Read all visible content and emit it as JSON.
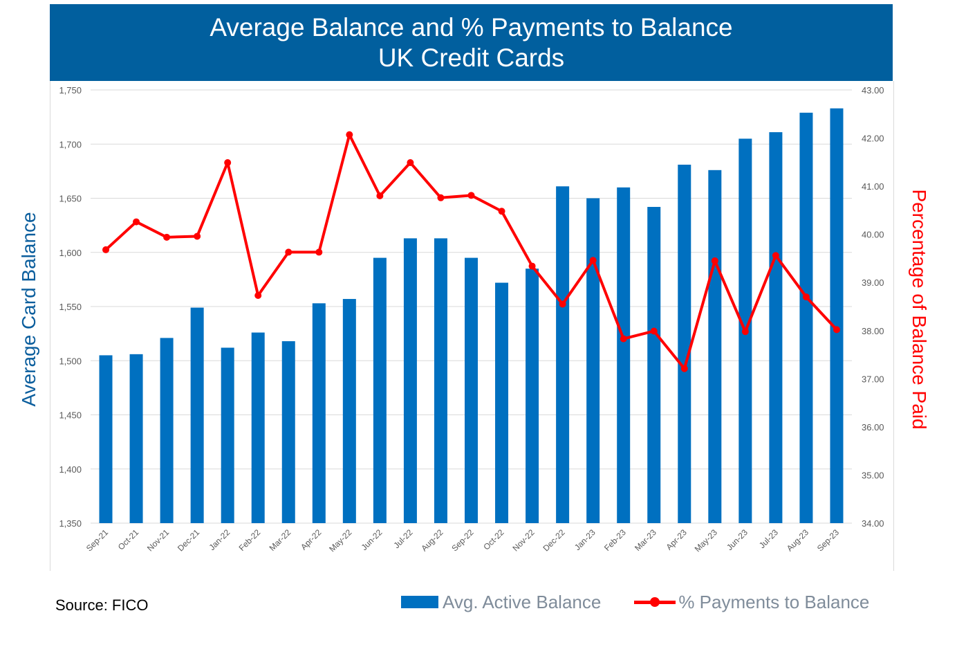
{
  "title": {
    "line1": "Average Balance and % Payments to Balance",
    "line2": "UK Credit Cards"
  },
  "source": "Source: FICO",
  "colors": {
    "banner": "#015f9e",
    "bar": "#0070c0",
    "line": "#ff0000",
    "left_axis_title": "#0b5e9d",
    "right_axis_title": "#ff0000"
  },
  "chart_data": {
    "type": "bar",
    "ylabel": "Average Card Balance",
    "y2label": "Percentage of Balance Paid",
    "ylim": [
      1350,
      1750
    ],
    "y2lim": [
      34,
      43
    ],
    "yticks": [
      "1,350",
      "1,400",
      "1,450",
      "1,500",
      "1,550",
      "1,600",
      "1,650",
      "1,700",
      "1,750"
    ],
    "y2ticks": [
      "34.00",
      "35.00",
      "36.00",
      "37.00",
      "38.00",
      "39.00",
      "40.00",
      "41.00",
      "42.00",
      "43.00"
    ],
    "grid": true,
    "legend_position": "bottom-right",
    "categories": [
      "Sep-21",
      "Oct-21",
      "Nov-21",
      "Dec-21",
      "Jan-22",
      "Feb-22",
      "Mar-22",
      "Apr-22",
      "May-22",
      "Jun-22",
      "Jul-22",
      "Aug-22",
      "Sep-22",
      "Oct-22",
      "Nov-22",
      "Dec-22",
      "Jan-23",
      "Feb-23",
      "Mar-23",
      "Apr-23",
      "May-23",
      "Jun-23",
      "Jul-23",
      "Aug-23",
      "Sep-23"
    ],
    "series": [
      {
        "name": "Avg. Active Balance",
        "type": "bar",
        "axis": "left",
        "values": [
          1505,
          1506,
          1521,
          1549,
          1512,
          1526,
          1518,
          1553,
          1557,
          1595,
          1613,
          1613,
          1595,
          1572,
          1585,
          1661,
          1650,
          1660,
          1642,
          1681,
          1676,
          1705,
          1711,
          1729,
          1733
        ]
      },
      {
        "name": "% Payments to Balance",
        "type": "line",
        "axis": "right",
        "values": [
          39.68,
          40.26,
          39.94,
          39.96,
          41.49,
          38.73,
          39.63,
          39.63,
          42.07,
          40.8,
          41.49,
          40.76,
          40.81,
          40.48,
          39.34,
          38.55,
          39.46,
          37.83,
          37.99,
          37.21,
          39.45,
          37.98,
          39.56,
          38.7,
          38.02
        ]
      }
    ]
  }
}
